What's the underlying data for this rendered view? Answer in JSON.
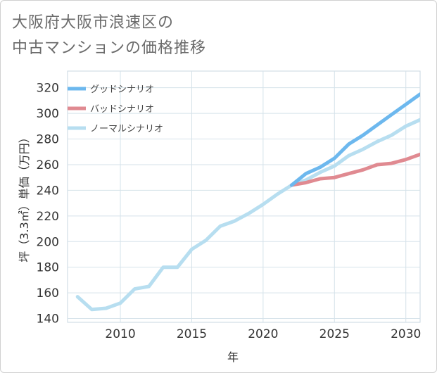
{
  "title_line1": "大阪府大阪市浪速区の",
  "title_line2": "中古マンションの価格推移",
  "chart_data": {
    "type": "line",
    "xlabel": "年",
    "ylabel": "坪（3.3㎡）単価（万円）",
    "xlim": [
      2006.3,
      2031
    ],
    "ylim": [
      137,
      333
    ],
    "xticks": [
      2010,
      2015,
      2020,
      2025,
      2030
    ],
    "yticks": [
      140,
      160,
      180,
      200,
      220,
      240,
      260,
      280,
      300,
      320
    ],
    "grid": true,
    "legend_position": "top-left",
    "series": [
      {
        "name": "グッドシナリオ",
        "color": "#6db8ee",
        "x": [
          2022,
          2023,
          2024,
          2025,
          2026,
          2027,
          2028,
          2029,
          2030,
          2031
        ],
        "values": [
          244,
          253,
          258,
          265,
          276,
          283,
          291,
          299,
          307,
          315
        ]
      },
      {
        "name": "バッドシナリオ",
        "color": "#e08a91",
        "x": [
          2022,
          2023,
          2024,
          2025,
          2026,
          2027,
          2028,
          2029,
          2030,
          2031
        ],
        "values": [
          244,
          246,
          249,
          250,
          253,
          256,
          260,
          261,
          264,
          268
        ]
      },
      {
        "name": "ノーマルシナリオ",
        "color": "#b7def0",
        "x": [
          2007,
          2008,
          2009,
          2010,
          2011,
          2012,
          2013,
          2014,
          2015,
          2016,
          2017,
          2018,
          2019,
          2020,
          2021,
          2022,
          2023,
          2024,
          2025,
          2026,
          2027,
          2028,
          2029,
          2030,
          2031
        ],
        "values": [
          157,
          147,
          148,
          152,
          163,
          165,
          180,
          180,
          194,
          201,
          212,
          216,
          222,
          229,
          237,
          244,
          248,
          254,
          259,
          267,
          272,
          278,
          283,
          290,
          295
        ]
      }
    ]
  }
}
